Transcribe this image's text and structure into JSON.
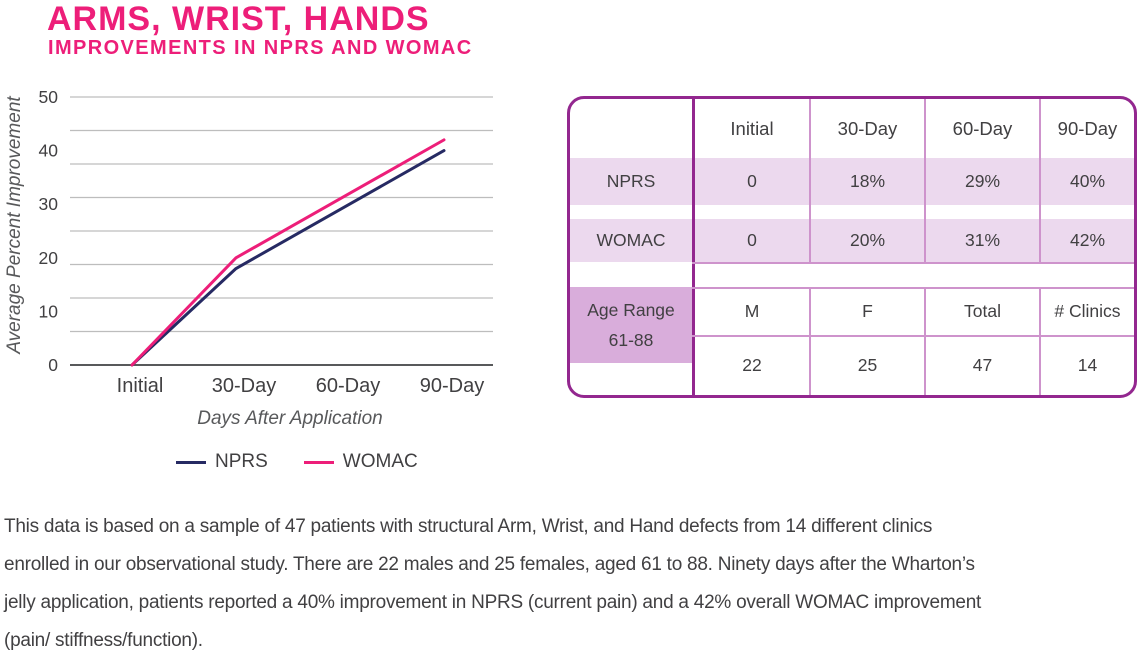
{
  "header": {
    "title": "ARMS, WRIST, HANDS",
    "subtitle": "IMPROVEMENTS IN NPRS AND WOMAC"
  },
  "colors": {
    "pink": "#ED1E79",
    "navy": "#262A63",
    "purple_border": "#93278F",
    "purple_thin_line": "#CE93CC",
    "lavender_light": "#ECD9EE",
    "lavender_dark": "#D9ADDB",
    "gridline": "#BDBDBD",
    "axis": "#58595B",
    "text": "#414042"
  },
  "chart_data": {
    "type": "line",
    "title": "",
    "categories": [
      "Initial",
      "30-Day",
      "60-Day",
      "90-Day"
    ],
    "series": [
      {
        "name": "NPRS",
        "color": "#262A63",
        "values": [
          0,
          18,
          29,
          40
        ]
      },
      {
        "name": "WOMAC",
        "color": "#ED1E79",
        "values": [
          0,
          20,
          31,
          42
        ]
      }
    ],
    "xlabel": "Days After Application",
    "ylabel": "Average Percent Improvement",
    "yticks": [
      0,
      10,
      20,
      30,
      40,
      50
    ],
    "ylim": [
      0,
      50
    ],
    "gridline_count": 9,
    "grid": true,
    "legend_position": "bottom"
  },
  "table": {
    "col_headers": [
      "Initial",
      "30-Day",
      "60-Day",
      "90-Day"
    ],
    "rows": [
      {
        "label": "NPRS",
        "values": [
          "0",
          "18%",
          "29%",
          "40%"
        ]
      },
      {
        "label": "WOMAC",
        "values": [
          "0",
          "20%",
          "31%",
          "42%"
        ]
      }
    ],
    "age_range": {
      "line1": "Age Range",
      "line2": "61-88"
    },
    "demographics": {
      "headers": [
        "M",
        "F",
        "Total",
        "# Clinics"
      ],
      "values": [
        "22",
        "25",
        "47",
        "14"
      ]
    }
  },
  "footer": {
    "text": "This data is based on a sample of 47 patients with structural Arm, Wrist, and Hand defects from 14 different clinics\nenrolled in our observational study. There are 22 males and 25 females, aged 61 to 88. Ninety days after the Wharton’s\njelly application, patients reported a 40% improvement in NPRS (current pain) and a 42% overall WOMAC improvement\n(pain/ stiffness/function)."
  }
}
